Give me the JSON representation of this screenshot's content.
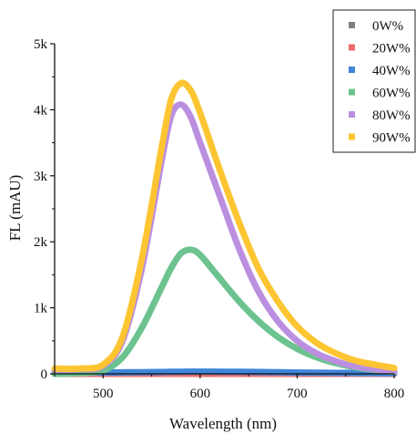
{
  "chart_data": {
    "type": "line",
    "title": "",
    "xlabel": "Wavelength (nm)",
    "ylabel": "FL (mAU)",
    "xlim": [
      450,
      800
    ],
    "ylim": [
      0,
      5000
    ],
    "x_ticks": [
      500,
      600,
      700,
      800
    ],
    "x_tick_labels": [
      "500",
      "600",
      "700",
      "800"
    ],
    "y_ticks": [
      0,
      1000,
      2000,
      3000,
      4000,
      5000
    ],
    "y_tick_labels": [
      "0",
      "1k",
      "2k",
      "3k",
      "4k",
      "5k"
    ],
    "grid": false,
    "legend_position": "top-right",
    "x": [
      450,
      475,
      500,
      520,
      540,
      560,
      570,
      580,
      590,
      600,
      620,
      640,
      660,
      680,
      700,
      720,
      740,
      760,
      780,
      800
    ],
    "series": [
      {
        "name": "0W%",
        "color": "#7f7f7f",
        "values": [
          0,
          0,
          0,
          0,
          0,
          0,
          0,
          0,
          0,
          0,
          0,
          0,
          0,
          0,
          0,
          0,
          0,
          0,
          0,
          0
        ]
      },
      {
        "name": "20W%",
        "color": "#ef6b6b",
        "values": [
          0,
          0,
          0,
          0,
          0,
          0,
          0,
          0,
          0,
          0,
          0,
          0,
          0,
          0,
          0,
          0,
          0,
          0,
          0,
          0
        ]
      },
      {
        "name": "40W%",
        "color": "#3f86d9",
        "values": [
          20,
          20,
          20,
          22,
          25,
          28,
          30,
          32,
          33,
          33,
          32,
          30,
          27,
          24,
          20,
          17,
          14,
          12,
          10,
          8
        ]
      },
      {
        "name": "60W%",
        "color": "#6cc38f",
        "values": [
          0,
          10,
          50,
          250,
          700,
          1300,
          1600,
          1820,
          1880,
          1800,
          1450,
          1100,
          800,
          560,
          380,
          250,
          160,
          100,
          60,
          30
        ]
      },
      {
        "name": "80W%",
        "color": "#bb8fe0",
        "values": [
          60,
          70,
          120,
          500,
          1600,
          3200,
          3900,
          4080,
          3900,
          3500,
          2700,
          1900,
          1250,
          800,
          500,
          310,
          190,
          110,
          70,
          40
        ]
      },
      {
        "name": "90W%",
        "color": "#fcc531",
        "values": [
          80,
          80,
          140,
          560,
          1750,
          3400,
          4150,
          4400,
          4300,
          3950,
          3100,
          2300,
          1600,
          1100,
          720,
          470,
          310,
          200,
          140,
          90
        ]
      }
    ]
  }
}
